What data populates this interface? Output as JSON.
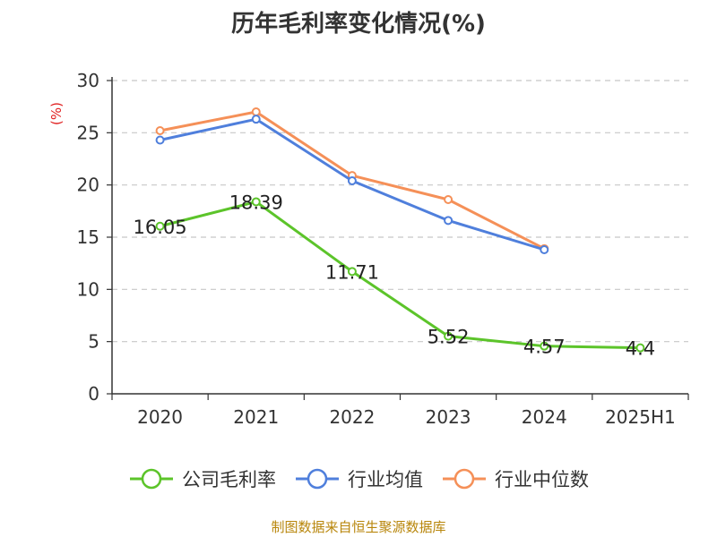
{
  "chart_data": {
    "type": "line",
    "title": "历年毛利率变化情况(%)",
    "ylabel": "(%)",
    "xlabel": "",
    "categories": [
      "2020",
      "2021",
      "2022",
      "2023",
      "2024",
      "2025H1"
    ],
    "ylim": [
      0,
      30
    ],
    "yticks": [
      0,
      5,
      10,
      15,
      20,
      25,
      30
    ],
    "grid": "horizontal-dashed",
    "legend_position": "bottom",
    "series": [
      {
        "name": "公司毛利率",
        "color": "#5cc42a",
        "values": [
          16.05,
          18.39,
          11.71,
          5.52,
          4.57,
          4.4
        ],
        "labels": [
          "16.05",
          "18.39",
          "11.71",
          "5.52",
          "4.57",
          "4.4"
        ]
      },
      {
        "name": "行业均值",
        "color": "#4f7fdc",
        "values": [
          24.3,
          26.3,
          20.4,
          16.6,
          13.8,
          null
        ]
      },
      {
        "name": "行业中位数",
        "color": "#f59058",
        "values": [
          25.2,
          27.0,
          20.9,
          18.6,
          13.9,
          null
        ]
      }
    ]
  },
  "footer": {
    "source": "制图数据来自恒生聚源数据库"
  }
}
